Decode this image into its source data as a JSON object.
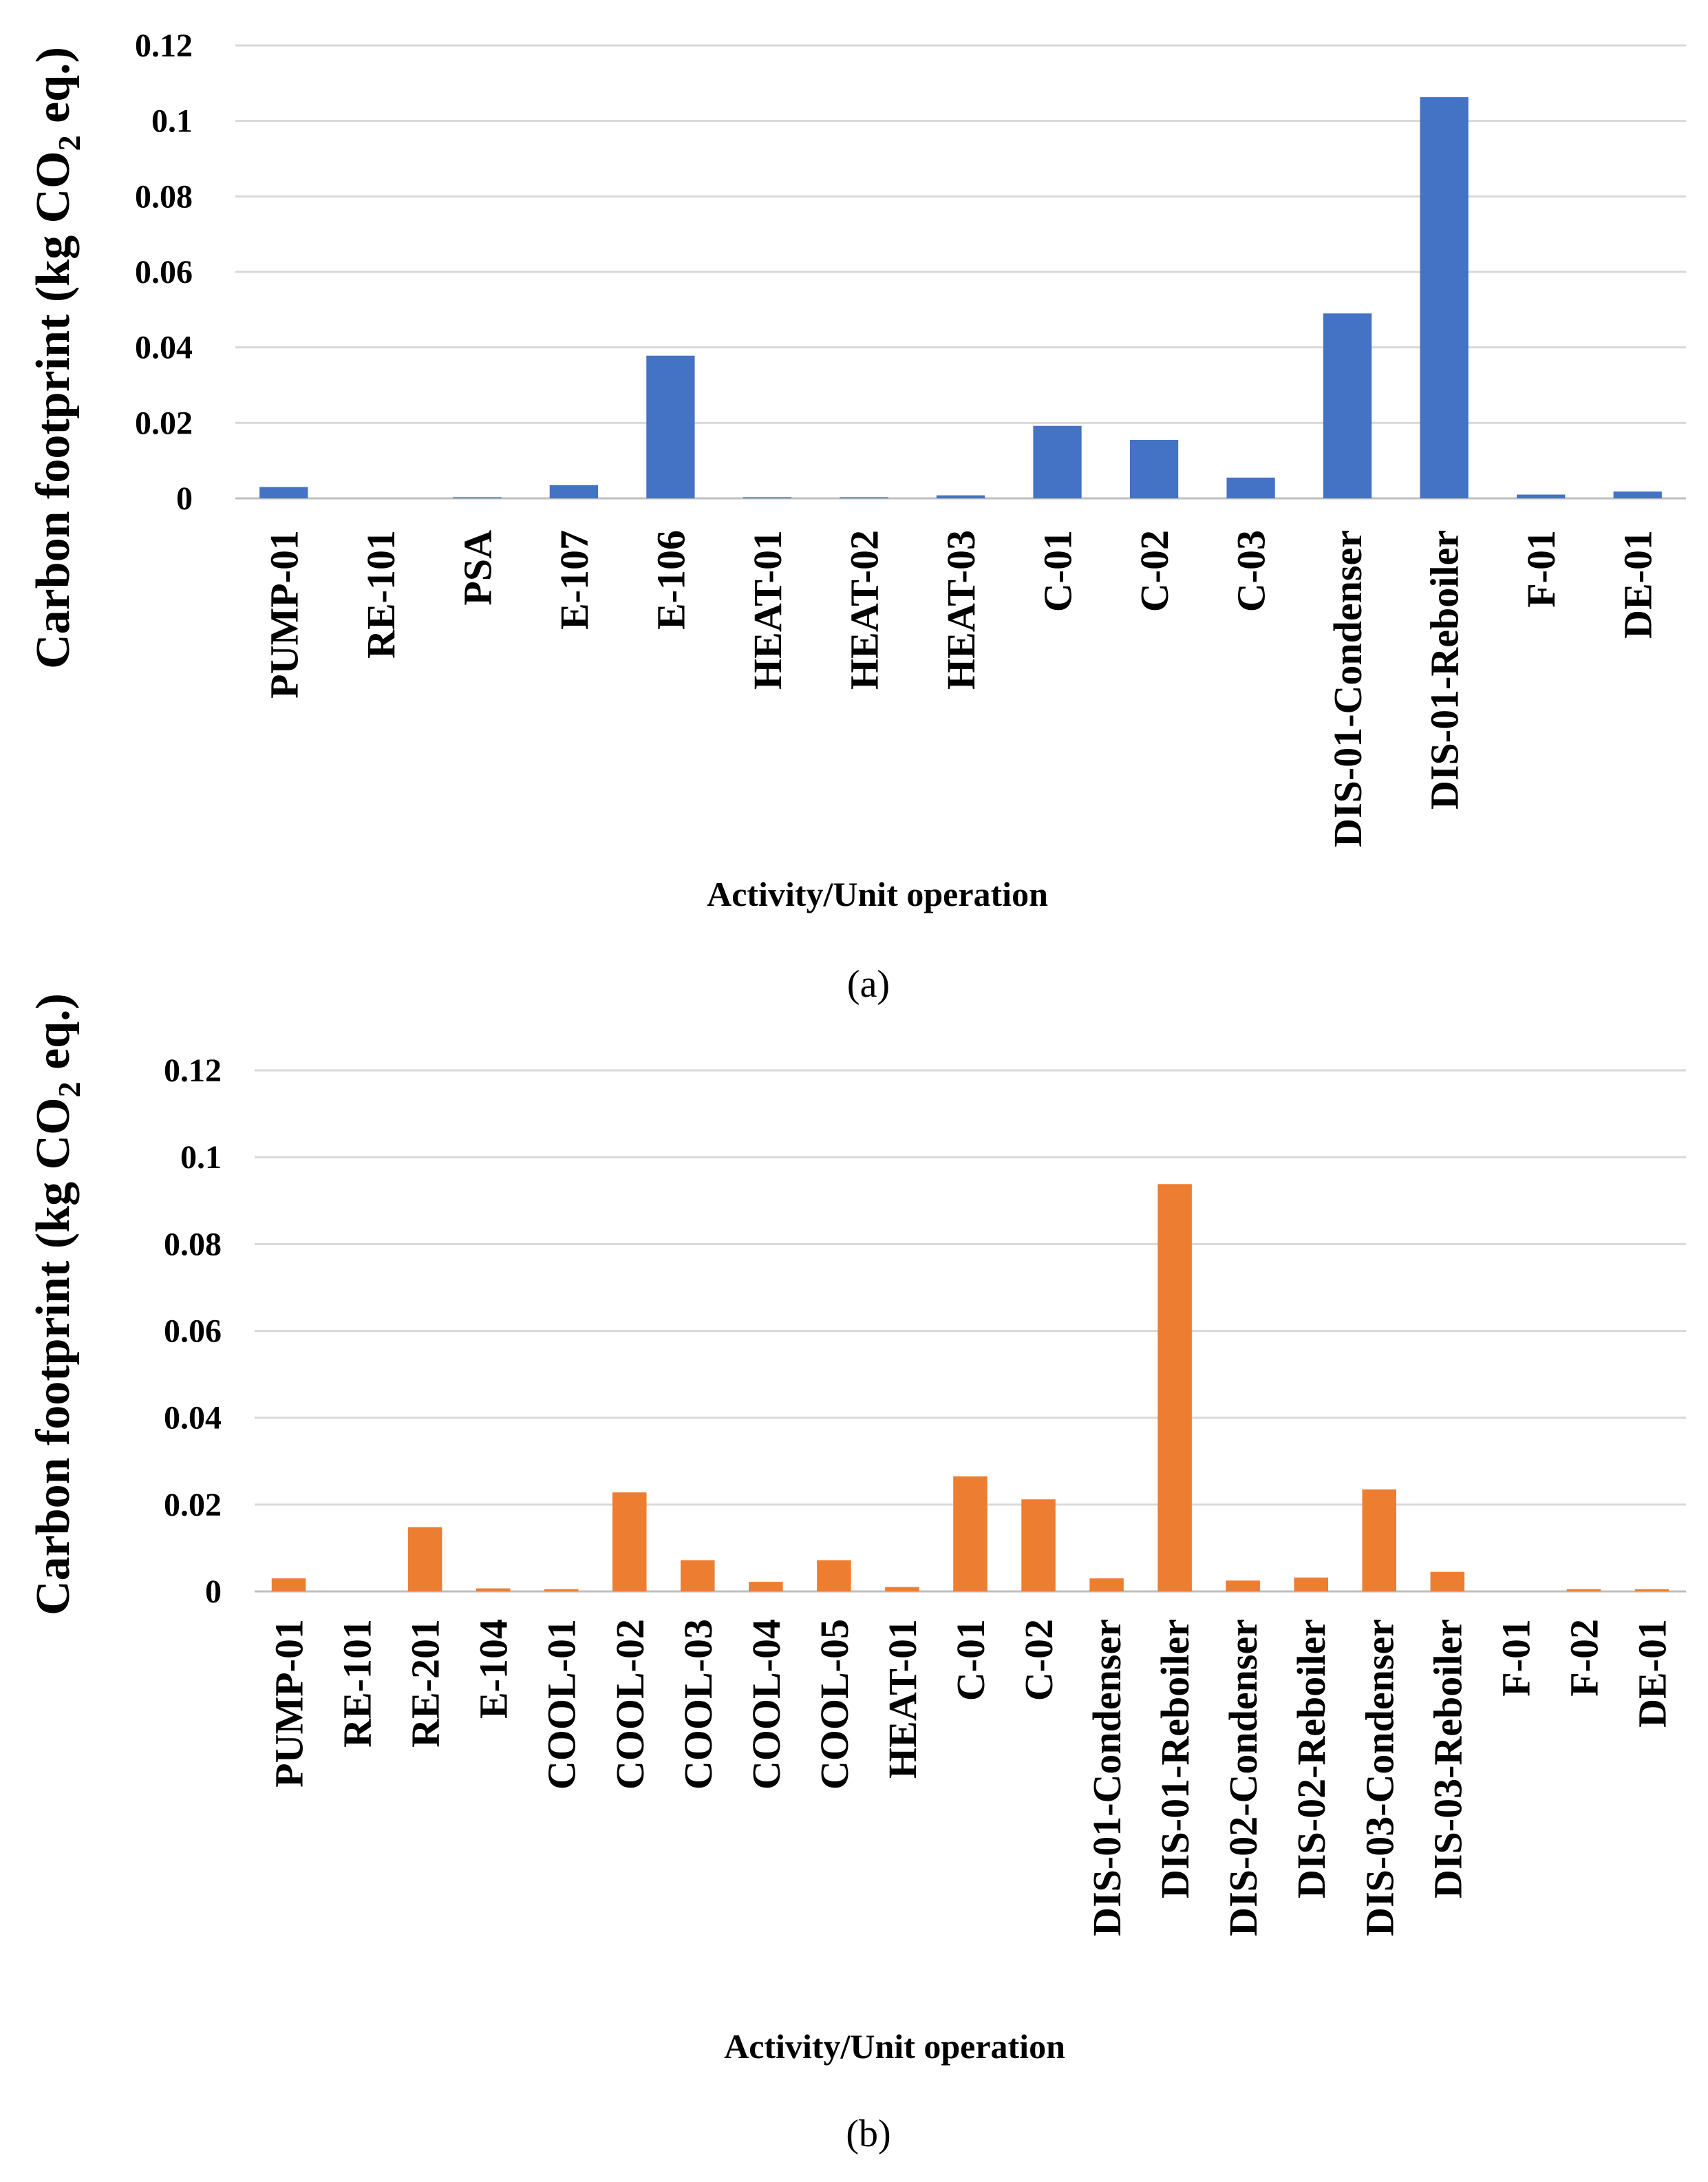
{
  "chart_data": [
    {
      "type": "bar",
      "panel_label": "(a)",
      "ylabel": "Carbon footprint (kg CO",
      "ylabel_sub": "2",
      "ylabel_end": " eq.)",
      "xlabel": "Activity/Unit operation",
      "ylim": [
        0,
        0.12
      ],
      "yticks": [
        0,
        0.02,
        0.04,
        0.06,
        0.08,
        0.1,
        0.12
      ],
      "ytick_labels": [
        "0",
        "0.02",
        "0.04",
        "0.06",
        "0.08",
        "0.1",
        "0.12"
      ],
      "grid": true,
      "color": "#4472C4",
      "categories": [
        "PUMP-01",
        "RE-101",
        "PSA",
        "E-107",
        "E-106",
        "HEAT-01",
        "HEAT-02",
        "HEAT-03",
        "C-01",
        "C-02",
        "C-03",
        "DIS-01-Condenser",
        "DIS-01-Reboiler",
        "F-01",
        "DE-01"
      ],
      "values": [
        0.003,
        0.0,
        0.0003,
        0.0035,
        0.0378,
        0.0003,
        0.0003,
        0.0008,
        0.0192,
        0.0155,
        0.0055,
        0.049,
        0.1063,
        0.001,
        0.0018
      ]
    },
    {
      "type": "bar",
      "panel_label": "(b)",
      "ylabel": "Carbon footprint (kg CO",
      "ylabel_sub": "2",
      "ylabel_end": " eq.)",
      "xlabel": "Activity/Unit operation",
      "ylim": [
        0,
        0.12
      ],
      "yticks": [
        0,
        0.02,
        0.04,
        0.06,
        0.08,
        0.1,
        0.12
      ],
      "ytick_labels": [
        "0",
        "0.02",
        "0.04",
        "0.06",
        "0.08",
        "0.1",
        "0.12"
      ],
      "grid": true,
      "color": "#ED7D31",
      "categories": [
        "PUMP-01",
        "RE-101",
        "RE-201",
        "E-104",
        "COOL-01",
        "COOL-02",
        "COOL-03",
        "COOL-04",
        "COOL-05",
        "HEAT-01",
        "C-01",
        "C-02",
        "DIS-01-Condenser",
        "DIS-01-Reboiler",
        "DIS-02-Condenser",
        "DIS-02-Reboiler",
        "DIS-03-Condenser",
        "DIS-03-Reboiler",
        "F-01",
        "F-02",
        "DE-01"
      ],
      "values": [
        0.003,
        0.0,
        0.0148,
        0.0007,
        0.0005,
        0.0228,
        0.0072,
        0.0022,
        0.0072,
        0.001,
        0.0265,
        0.0212,
        0.003,
        0.0938,
        0.0025,
        0.0032,
        0.0235,
        0.0045,
        0.0,
        0.0005,
        0.0005
      ]
    }
  ]
}
